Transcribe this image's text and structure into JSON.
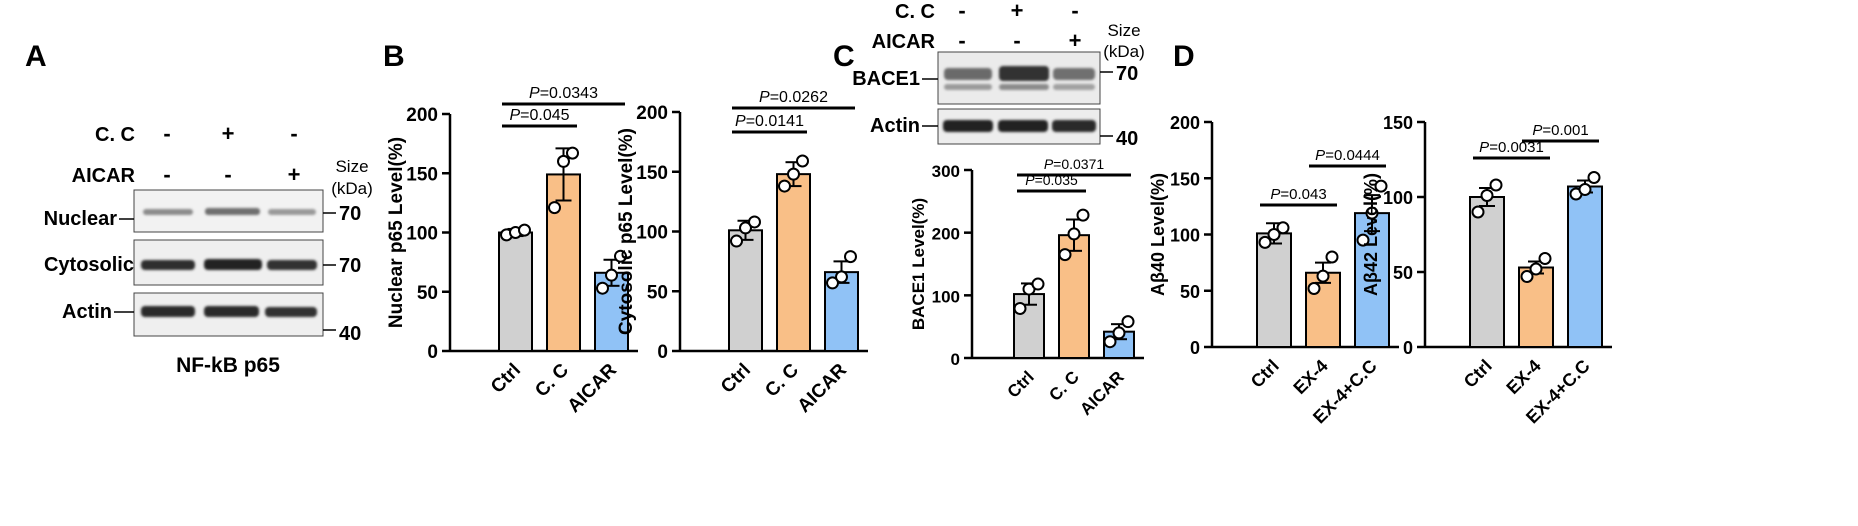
{
  "colors": {
    "ctrl": "#d0d0d0",
    "cc": "#f9bf87",
    "aicar": "#90c2f6",
    "axis": "#000000",
    "marker_fill": "#ffffff"
  },
  "panel_labels": {
    "A": "A",
    "B": "B",
    "C": "C",
    "D": "D"
  },
  "blot_a": {
    "treatments": [
      {
        "label": "C. C",
        "signs": [
          "-",
          "+",
          "-"
        ]
      },
      {
        "label": "AICAR",
        "signs": [
          "-",
          "-",
          "+"
        ]
      }
    ],
    "size_label_1": "Size",
    "size_label_2": "(kDa)",
    "bands": [
      {
        "label": "Nuclear",
        "marker": "70"
      },
      {
        "label": "Cytosolic",
        "marker": "70"
      },
      {
        "label": "Actin",
        "marker": "40"
      }
    ],
    "caption": "NF-kB p65"
  },
  "blot_c": {
    "treatments": [
      {
        "label": "C. C",
        "signs": [
          "-",
          "+",
          "-"
        ]
      },
      {
        "label": "AICAR",
        "signs": [
          "-",
          "-",
          "+"
        ]
      }
    ],
    "size_label_1": "Size",
    "size_label_2": "(kDa)",
    "bands": [
      {
        "label": "BACE1",
        "marker": "70"
      },
      {
        "label": "Actin",
        "marker": "40"
      }
    ]
  },
  "chart_data": [
    {
      "panel": "B",
      "type": "bar",
      "categories": [
        "Ctrl",
        "C. C",
        "AICAR"
      ],
      "values": [
        100,
        149,
        66
      ],
      "errors": [
        3,
        22,
        11
      ],
      "points": [
        [
          98,
          100,
          102
        ],
        [
          121,
          160,
          167
        ],
        [
          53,
          64,
          80
        ]
      ],
      "ylabel": "Nuclear p65 Level(%)",
      "ylim": [
        0,
        200
      ],
      "yticks": [
        0,
        50,
        100,
        150,
        200
      ],
      "brackets": [
        {
          "from": 0,
          "to": 1,
          "p": "=0.045"
        },
        {
          "from": 0,
          "to": 2,
          "p": "=0.0343"
        }
      ]
    },
    {
      "panel": "B",
      "type": "bar",
      "categories": [
        "Ctrl",
        "C. C",
        "AICAR"
      ],
      "values": [
        101,
        148,
        66
      ],
      "errors": [
        8,
        10,
        9
      ],
      "points": [
        [
          92,
          103,
          108
        ],
        [
          138,
          148,
          159
        ],
        [
          57,
          62,
          79
        ]
      ],
      "ylabel": "Cytosolic p65 Level(%)",
      "ylim": [
        0,
        200
      ],
      "yticks": [
        0,
        50,
        100,
        150,
        200
      ],
      "brackets": [
        {
          "from": 0,
          "to": 1,
          "p": "=0.0141"
        },
        {
          "from": 0,
          "to": 2,
          "p": "=0.0262"
        }
      ]
    },
    {
      "panel": "C",
      "type": "bar",
      "categories": [
        "Ctrl",
        "C. C",
        "AICAR"
      ],
      "values": [
        102,
        196,
        42
      ],
      "errors": [
        17,
        25,
        12
      ],
      "points": [
        [
          79,
          110,
          118
        ],
        [
          165,
          198,
          228
        ],
        [
          26,
          40,
          58
        ]
      ],
      "ylabel": "BACE1 Level(%)",
      "ylim": [
        0,
        300
      ],
      "yticks": [
        0,
        100,
        200,
        300
      ],
      "brackets": [
        {
          "from": 0,
          "to": 1,
          "p": "=0.035"
        },
        {
          "from": 0,
          "to": 2,
          "p": "=0.0371"
        }
      ]
    },
    {
      "panel": "D",
      "type": "bar",
      "categories": [
        "Ctrl",
        "EX-4",
        "EX-4+C.C"
      ],
      "values": [
        101,
        66,
        119
      ],
      "errors": [
        9,
        9,
        16
      ],
      "points": [
        [
          93,
          100,
          106
        ],
        [
          52,
          63,
          80
        ],
        [
          95,
          119,
          143
        ]
      ],
      "ylabel": "Aβ40 Level(%)",
      "ylim": [
        0,
        200
      ],
      "yticks": [
        0,
        50,
        100,
        150,
        200
      ],
      "brackets": [
        {
          "from": 0,
          "to": 1,
          "p": "=0.043"
        },
        {
          "from": 1,
          "to": 2,
          "p": "=0.0444"
        }
      ]
    },
    {
      "panel": "D",
      "type": "bar",
      "categories": [
        "Ctrl",
        "EX-4",
        "EX-4+C.C"
      ],
      "values": [
        100,
        53,
        107
      ],
      "errors": [
        6,
        4,
        4
      ],
      "points": [
        [
          90,
          101,
          108
        ],
        [
          47,
          52,
          59
        ],
        [
          102,
          105,
          113
        ]
      ],
      "ylabel": "Aβ42 Level(%)",
      "ylim": [
        0,
        150
      ],
      "yticks": [
        0,
        50,
        100,
        150
      ],
      "brackets": [
        {
          "from": 0,
          "to": 1,
          "p": "=0.0031"
        },
        {
          "from": 1,
          "to": 2,
          "p": "=0.001"
        }
      ]
    }
  ]
}
